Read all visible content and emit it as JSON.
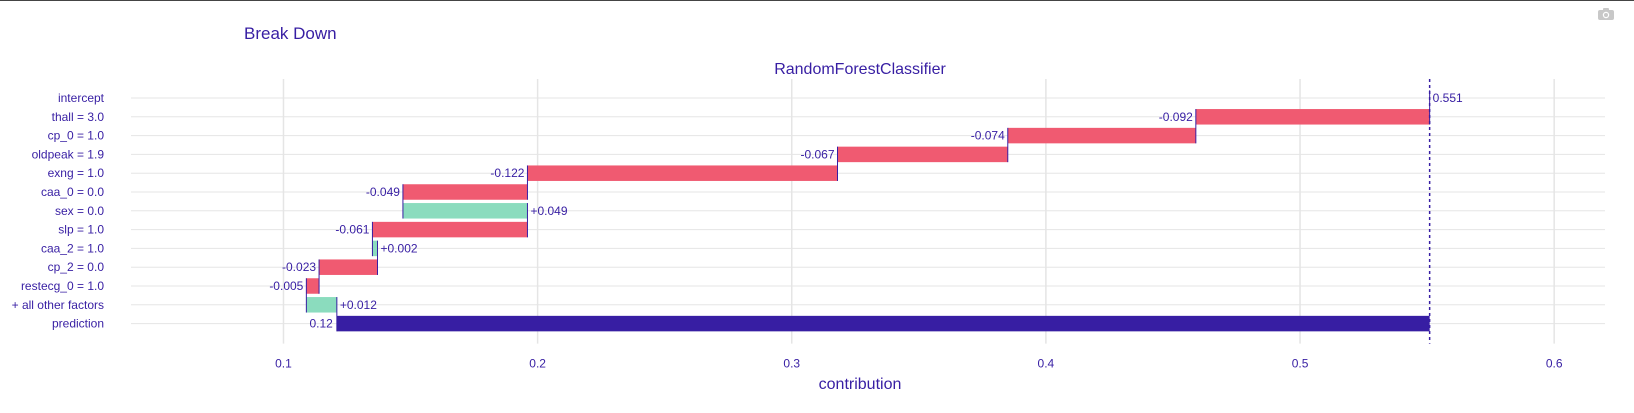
{
  "title": "Break Down",
  "chart_data": {
    "type": "bar",
    "subtype": "waterfall",
    "subtitle": "RandomForestClassifier",
    "xlabel": "contribution",
    "xlim": [
      0.04,
      0.62
    ],
    "xticks": [
      0.1,
      0.2,
      0.3,
      0.4,
      0.5,
      0.6
    ],
    "xtick_labels": [
      "0.1",
      "0.2",
      "0.3",
      "0.4",
      "0.5",
      "0.6"
    ],
    "grid": true,
    "colors": {
      "positive": "#8bdcbe",
      "negative": "#f05a71",
      "prediction": "#371ea3",
      "text": "#371ea3",
      "grid": "#e5e5e5"
    },
    "rows": [
      {
        "variable": "intercept",
        "start": 0.551,
        "end": 0.551,
        "label": "0.551",
        "kind": "intercept"
      },
      {
        "variable": "thall = 3.0",
        "start": 0.551,
        "end": 0.459,
        "label": "-0.092",
        "kind": "negative"
      },
      {
        "variable": "cp_0 = 1.0",
        "start": 0.459,
        "end": 0.385,
        "label": "-0.074",
        "kind": "negative"
      },
      {
        "variable": "oldpeak = 1.9",
        "start": 0.385,
        "end": 0.318,
        "label": "-0.067",
        "kind": "negative"
      },
      {
        "variable": "exng = 1.0",
        "start": 0.318,
        "end": 0.196,
        "label": "-0.122",
        "kind": "negative"
      },
      {
        "variable": "caa_0 = 0.0",
        "start": 0.196,
        "end": 0.147,
        "label": "-0.049",
        "kind": "negative"
      },
      {
        "variable": "sex = 0.0",
        "start": 0.147,
        "end": 0.196,
        "label": "+0.049",
        "kind": "positive"
      },
      {
        "variable": "slp = 1.0",
        "start": 0.196,
        "end": 0.135,
        "label": "-0.061",
        "kind": "negative"
      },
      {
        "variable": "caa_2 = 1.0",
        "start": 0.135,
        "end": 0.137,
        "label": "+0.002",
        "kind": "positive"
      },
      {
        "variable": "cp_2 = 0.0",
        "start": 0.137,
        "end": 0.114,
        "label": "-0.023",
        "kind": "negative"
      },
      {
        "variable": "restecg_0 = 1.0",
        "start": 0.114,
        "end": 0.109,
        "label": "-0.005",
        "kind": "negative"
      },
      {
        "variable": "+ all other factors",
        "start": 0.109,
        "end": 0.121,
        "label": "+0.012",
        "kind": "positive"
      },
      {
        "variable": "prediction",
        "start": 0.121,
        "end": 0.551,
        "label": "0.12",
        "kind": "prediction"
      }
    ]
  }
}
